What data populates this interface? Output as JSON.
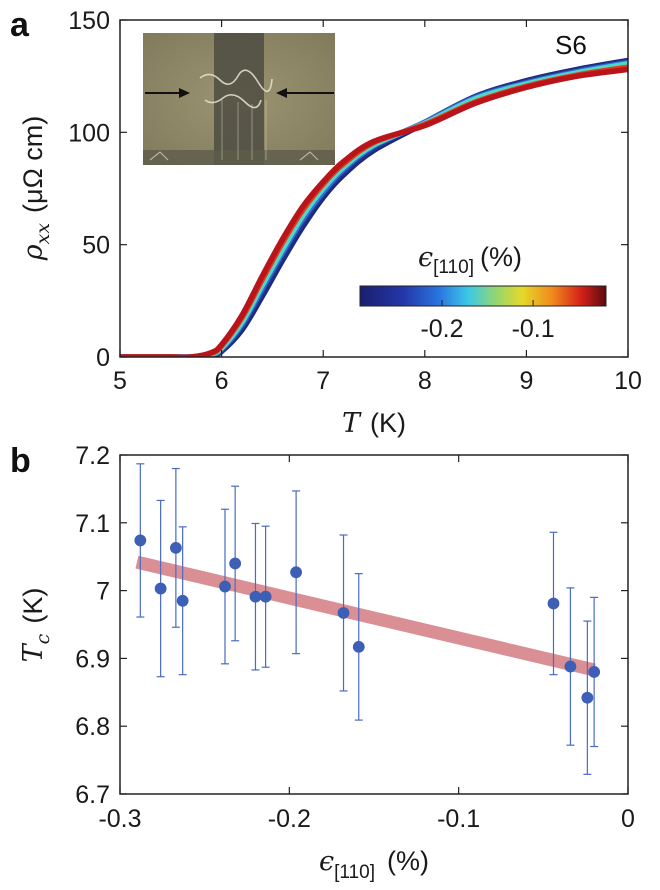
{
  "panel_a": {
    "letter": "a",
    "sample_label": "S6",
    "ylabel": {
      "symbol": "ρ",
      "subscript": "xx",
      "unit": "(μΩ cm)"
    },
    "xlabel": {
      "symbol": "T",
      "unit": "(K)"
    },
    "colorbar": {
      "label_symbol": "ϵ",
      "label_subscript": "[110]",
      "label_unit": "(%)",
      "tick_labels": [
        "-0.2",
        "-0.1"
      ],
      "tick_values": [
        -0.2,
        -0.1
      ],
      "range": [
        -0.29,
        -0.02
      ]
    },
    "inset": {
      "description_icon": "micrograph-image"
    }
  },
  "panel_b": {
    "letter": "b",
    "ylabel": {
      "symbol": "T",
      "subscript": "c",
      "unit": "(K)"
    },
    "xlabel": {
      "symbol": "ϵ",
      "subscript": "[110]",
      "unit": "(%)"
    }
  },
  "colors": {
    "marker": "#3d5fb5",
    "errorbar": "#4a6bc2",
    "fit_line": "#d98a8f",
    "axis": "#222222"
  },
  "chart_data": [
    {
      "type": "line",
      "xlim": [
        5,
        10
      ],
      "ylim": [
        0,
        150
      ],
      "x_ticks": [
        5,
        6,
        7,
        8,
        9,
        10
      ],
      "y_ticks": [
        0,
        50,
        100,
        150
      ],
      "x_tick_labels": [
        "5",
        "6",
        "7",
        "8",
        "9",
        "10"
      ],
      "y_tick_labels": [
        "0",
        "50",
        "100",
        "150"
      ],
      "legend": "colorbar bottom-right",
      "series": [
        {
          "strain": -0.29,
          "color": "#1b2a7a",
          "x": [
            5.0,
            5.5,
            5.7,
            5.9,
            6.0,
            6.2,
            6.4,
            6.6,
            6.8,
            7.0,
            7.2,
            7.5,
            8.0,
            8.5,
            9.0,
            9.5,
            10.0
          ],
          "y": [
            0,
            0,
            0,
            0.8,
            2.5,
            12,
            27,
            43,
            58,
            71,
            81,
            92,
            104,
            116,
            123,
            128,
            132
          ]
        },
        {
          "strain": -0.24,
          "color": "#26348f",
          "x": [
            5.0,
            5.5,
            5.7,
            5.9,
            6.0,
            6.2,
            6.4,
            6.6,
            6.8,
            7.0,
            7.2,
            7.5,
            8.0,
            8.5,
            9.0,
            9.5,
            10.0
          ],
          "y": [
            0,
            0,
            0,
            1.0,
            3,
            13.5,
            29,
            45,
            60,
            72.5,
            82.5,
            93,
            104.5,
            116,
            122.5,
            127.5,
            131.5
          ]
        },
        {
          "strain": -0.2,
          "color": "#2f6fd6",
          "x": [
            5.0,
            5.5,
            5.7,
            5.9,
            6.0,
            6.2,
            6.4,
            6.6,
            6.8,
            7.0,
            7.2,
            7.5,
            8.0,
            8.5,
            9.0,
            9.5,
            10.0
          ],
          "y": [
            0,
            0,
            0,
            1.2,
            3.5,
            14.5,
            30.5,
            46.5,
            61.5,
            73.5,
            83.5,
            94,
            104.5,
            115.5,
            122,
            127,
            131
          ]
        },
        {
          "strain": -0.15,
          "color": "#4fd8c8",
          "x": [
            5.0,
            5.5,
            5.7,
            5.9,
            6.0,
            6.2,
            6.4,
            6.6,
            6.8,
            7.0,
            7.2,
            7.5,
            8.0,
            8.5,
            9.0,
            9.5,
            10.0
          ],
          "y": [
            0,
            0,
            0,
            1.4,
            4,
            15.5,
            32,
            48,
            63,
            75,
            84.5,
            94.5,
            104,
            115,
            121.5,
            126.5,
            130.5
          ]
        },
        {
          "strain": -0.05,
          "color": "#e03a1e",
          "x": [
            5.0,
            5.5,
            5.7,
            5.9,
            6.0,
            6.2,
            6.4,
            6.6,
            6.8,
            7.0,
            7.2,
            7.5,
            8.0,
            8.5,
            9.0,
            9.5,
            10.0
          ],
          "y": [
            0,
            0,
            0,
            1.7,
            5,
            17.5,
            34.5,
            51,
            65.5,
            77,
            86,
            95.5,
            103.5,
            113.5,
            120.5,
            125.5,
            129
          ]
        },
        {
          "strain": -0.02,
          "color": "#b8141a",
          "x": [
            5.0,
            5.5,
            5.7,
            5.9,
            6.0,
            6.2,
            6.4,
            6.6,
            6.8,
            7.0,
            7.2,
            7.5,
            8.0,
            8.5,
            9.0,
            9.5,
            10.0
          ],
          "y": [
            0,
            0,
            0,
            2.0,
            5.5,
            18.5,
            36,
            52.5,
            67,
            78,
            87,
            96,
            103,
            113,
            120,
            125,
            128
          ]
        }
      ]
    },
    {
      "type": "scatter",
      "xlim": [
        -0.3,
        0
      ],
      "ylim": [
        6.7,
        7.2
      ],
      "x_ticks": [
        -0.3,
        -0.2,
        -0.1,
        0
      ],
      "y_ticks": [
        6.7,
        6.8,
        6.9,
        7.0,
        7.1,
        7.2
      ],
      "x_tick_labels": [
        "-0.3",
        "-0.2",
        "-0.1",
        "0"
      ],
      "y_tick_labels": [
        "6.7",
        "6.8",
        "6.9",
        "7",
        "7.1",
        "7.2"
      ],
      "points": [
        {
          "x": -0.288,
          "y": 7.074,
          "err": 0.113
        },
        {
          "x": -0.276,
          "y": 7.003,
          "err": 0.13
        },
        {
          "x": -0.267,
          "y": 7.063,
          "err": 0.117
        },
        {
          "x": -0.263,
          "y": 6.985,
          "err": 0.109
        },
        {
          "x": -0.238,
          "y": 7.006,
          "err": 0.114
        },
        {
          "x": -0.232,
          "y": 7.04,
          "err": 0.114
        },
        {
          "x": -0.22,
          "y": 6.991,
          "err": 0.108
        },
        {
          "x": -0.214,
          "y": 6.991,
          "err": 0.104
        },
        {
          "x": -0.196,
          "y": 7.027,
          "err": 0.12
        },
        {
          "x": -0.168,
          "y": 6.967,
          "err": 0.115
        },
        {
          "x": -0.159,
          "y": 6.917,
          "err": 0.108
        },
        {
          "x": -0.044,
          "y": 6.981,
          "err": 0.105
        },
        {
          "x": -0.034,
          "y": 6.888,
          "err": 0.116
        },
        {
          "x": -0.024,
          "y": 6.842,
          "err": 0.113
        },
        {
          "x": -0.02,
          "y": 6.88,
          "err": 0.11
        }
      ],
      "fit": {
        "x": [
          -0.29,
          -0.02
        ],
        "y": [
          7.042,
          6.883
        ]
      }
    }
  ]
}
